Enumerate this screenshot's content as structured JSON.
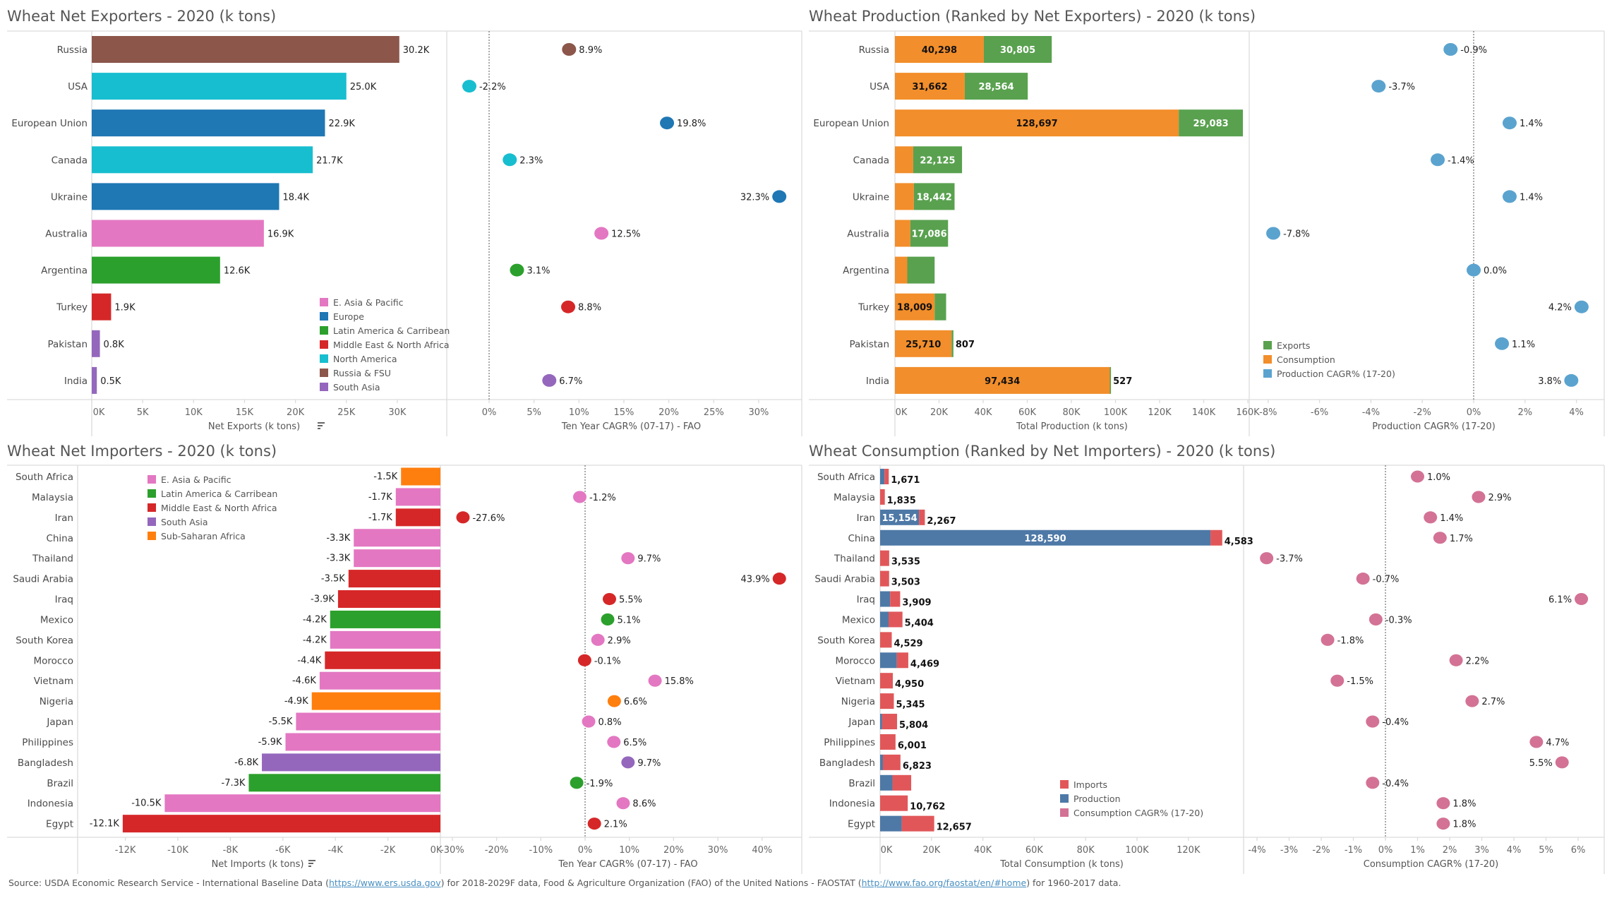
{
  "colors": {
    "E. Asia & Pacific": "#e377c2",
    "Europe": "#1f77b4",
    "Latin America & Carribean": "#2ca02c",
    "Middle East & North Africa": "#d62728",
    "North America": "#17becf",
    "Russia & FSU": "#8c564b",
    "South Asia": "#9467bd",
    "Sub-Saharan Africa": "#ff7f0e",
    "exports": "#59a14f",
    "consumption": "#f28e2b",
    "production_cagr": "#5ba3cf",
    "imports": "#e15759",
    "production": "#4e79a7",
    "consumption_cagr": "#d37295"
  },
  "footer": {
    "prefix": "Source: USDA Economic Research Service - International Baseline Data (",
    "link1": "https://www.ers.usda.gov",
    "middle": ") for 2018-2029F data, Food & Agriculture Organization (FAO) of the United Nations - FAOSTAT (",
    "link2": "http://www.fao.org/faostat/en/#home",
    "suffix": ") for 1960-2017 data."
  },
  "chart_data": [
    {
      "id": "exporters",
      "type": "bar",
      "title": "Wheat Net Exporters - 2020 (k tons)",
      "xlabel": "Net Exports (k tons)",
      "xlim": [
        0,
        34
      ],
      "ticks": [
        "0K",
        "5K",
        "10K",
        "15K",
        "20K",
        "25K",
        "30K"
      ],
      "tick_values": [
        0,
        5,
        10,
        15,
        20,
        25,
        30
      ],
      "categories": [
        "Russia",
        "USA",
        "European Union",
        "Canada",
        "Ukraine",
        "Australia",
        "Argentina",
        "Turkey",
        "Pakistan",
        "India"
      ],
      "values": [
        30.2,
        25.0,
        22.9,
        21.7,
        18.4,
        16.9,
        12.6,
        1.9,
        0.8,
        0.5
      ],
      "labels": [
        "30.2K",
        "25.0K",
        "22.9K",
        "21.7K",
        "18.4K",
        "16.9K",
        "12.6K",
        "1.9K",
        "0.8K",
        "0.5K"
      ],
      "regions": [
        "Russia & FSU",
        "North America",
        "Europe",
        "North America",
        "Europe",
        "E. Asia & Pacific",
        "Latin America & Carribean",
        "Middle East & North Africa",
        "South Asia",
        "South Asia"
      ],
      "legend": [
        "E. Asia & Pacific",
        "Europe",
        "Latin America & Carribean",
        "Middle East & North Africa",
        "North America",
        "Russia & FSU",
        "South Asia"
      ],
      "legend_position": "bottom-right"
    },
    {
      "id": "exporters_cagr",
      "type": "scatter",
      "xlabel": "Ten Year CAGR% (07-17) - FAO",
      "xlim": [
        -3.5,
        34
      ],
      "ticks": [
        "0%",
        "5%",
        "10%",
        "15%",
        "20%",
        "25%",
        "30%"
      ],
      "tick_values": [
        0,
        5,
        10,
        15,
        20,
        25,
        30
      ],
      "values": [
        8.9,
        -2.2,
        19.8,
        2.3,
        32.3,
        12.5,
        3.1,
        8.8,
        null,
        6.7
      ],
      "labels": [
        "8.9%",
        "-2.2%",
        "19.8%",
        "2.3%",
        "32.3%",
        "12.5%",
        "3.1%",
        "8.8%",
        "",
        "6.7%"
      ]
    },
    {
      "id": "production",
      "type": "bar",
      "stacked": true,
      "title": "Wheat Production (Ranked by Net Exporters) - 2020 (k tons)",
      "xlabel": "Total Production (k tons)",
      "xlim": [
        0,
        160
      ],
      "ticks": [
        "0K",
        "20K",
        "40K",
        "60K",
        "80K",
        "100K",
        "120K",
        "140K",
        "160K"
      ],
      "tick_values": [
        0,
        20,
        40,
        60,
        80,
        100,
        120,
        140,
        160
      ],
      "categories": [
        "Russia",
        "USA",
        "European Union",
        "Canada",
        "Ukraine",
        "Australia",
        "Argentina",
        "Turkey",
        "Pakistan",
        "India"
      ],
      "series": [
        {
          "name": "Consumption",
          "values": [
            40298,
            31662,
            128697,
            8300,
            8600,
            7000,
            5600,
            18009,
            25710,
            97434
          ],
          "labels": [
            "40,298",
            "31,662",
            "128,697",
            "",
            "",
            "",
            "",
            "18,009",
            "25,710",
            "97,434"
          ]
        },
        {
          "name": "Exports",
          "values": [
            30805,
            28564,
            29083,
            22125,
            18442,
            17086,
            12400,
            5200,
            807,
            527
          ],
          "labels": [
            "30,805",
            "28,564",
            "29,083",
            "22,125",
            "18,442",
            "17,086",
            "",
            "",
            "807",
            "527"
          ]
        }
      ],
      "legend": [
        "Exports",
        "Consumption",
        "Production CAGR% (17-20)"
      ]
    },
    {
      "id": "production_cagr",
      "type": "scatter",
      "xlabel": "Production CAGR% (17-20)",
      "xlim": [
        -8.6,
        5
      ],
      "ticks": [
        "-8%",
        "-6%",
        "-4%",
        "-2%",
        "0%",
        "2%",
        "4%"
      ],
      "tick_values": [
        -8,
        -6,
        -4,
        -2,
        0,
        2,
        4
      ],
      "values": [
        -0.9,
        -3.7,
        1.4,
        -1.4,
        1.4,
        -7.8,
        0.0,
        4.2,
        1.1,
        3.8
      ],
      "labels": [
        "-0.9%",
        "-3.7%",
        "1.4%",
        "-1.4%",
        "1.4%",
        "-7.8%",
        "0.0%",
        "4.2%",
        "1.1%",
        "3.8%"
      ]
    },
    {
      "id": "importers",
      "type": "bar",
      "title": "Wheat Net Importers - 2020 (k tons)",
      "xlabel": "Net Imports (k tons)",
      "xlim": [
        -13.7,
        0
      ],
      "ticks": [
        "-12K",
        "-10K",
        "-8K",
        "-6K",
        "-4K",
        "-2K",
        "0K"
      ],
      "tick_values": [
        -12,
        -10,
        -8,
        -6,
        -4,
        -2,
        0
      ],
      "categories": [
        "South Africa",
        "Malaysia",
        "Iran",
        "China",
        "Thailand",
        "Saudi Arabia",
        "Iraq",
        "Mexico",
        "South Korea",
        "Morocco",
        "Vietnam",
        "Nigeria",
        "Japan",
        "Philippines",
        "Bangladesh",
        "Brazil",
        "Indonesia",
        "Egypt"
      ],
      "values": [
        -1.5,
        -1.7,
        -1.7,
        -3.3,
        -3.3,
        -3.5,
        -3.9,
        -4.2,
        -4.2,
        -4.4,
        -4.6,
        -4.9,
        -5.5,
        -5.9,
        -6.8,
        -7.3,
        -10.5,
        -12.1
      ],
      "labels": [
        "-1.5K",
        "-1.7K",
        "-1.7K",
        "-3.3K",
        "-3.3K",
        "-3.5K",
        "-3.9K",
        "-4.2K",
        "-4.2K",
        "-4.4K",
        "-4.6K",
        "-4.9K",
        "-5.5K",
        "-5.9K",
        "-6.8K",
        "-7.3K",
        "-10.5K",
        "-12.1K"
      ],
      "regions": [
        "Sub-Saharan Africa",
        "E. Asia & Pacific",
        "Middle East & North Africa",
        "E. Asia & Pacific",
        "E. Asia & Pacific",
        "Middle East & North Africa",
        "Middle East & North Africa",
        "Latin America & Carribean",
        "E. Asia & Pacific",
        "Middle East & North Africa",
        "E. Asia & Pacific",
        "Sub-Saharan Africa",
        "E. Asia & Pacific",
        "E. Asia & Pacific",
        "South Asia",
        "Latin America & Carribean",
        "E. Asia & Pacific",
        "Middle East & North Africa"
      ],
      "legend": [
        "E. Asia & Pacific",
        "Latin America & Carribean",
        "Middle East & North Africa",
        "South Asia",
        "Sub-Saharan Africa"
      ],
      "legend_position": "top-left"
    },
    {
      "id": "importers_cagr",
      "type": "scatter",
      "xlabel": "Ten Year CAGR% (07-17) - FAO",
      "xlim": [
        -33,
        49
      ],
      "ticks": [
        "-30%",
        "-20%",
        "-10%",
        "0%",
        "10%",
        "20%",
        "30%",
        "40%"
      ],
      "tick_values": [
        -30,
        -20,
        -10,
        0,
        10,
        20,
        30,
        40
      ],
      "values": [
        null,
        -1.2,
        -27.6,
        null,
        9.7,
        43.9,
        5.5,
        5.1,
        2.9,
        -0.1,
        15.8,
        6.6,
        0.8,
        6.5,
        9.7,
        -1.9,
        8.6,
        2.1
      ],
      "labels": [
        "",
        "-1.2%",
        "-27.6%",
        "",
        "9.7%",
        "43.9%",
        "5.5%",
        "5.1%",
        "2.9%",
        "-0.1%",
        "15.8%",
        "6.6%",
        "0.8%",
        "6.5%",
        "9.7%",
        "-1.9%",
        "8.6%",
        "2.1%"
      ]
    },
    {
      "id": "consumption",
      "type": "bar",
      "stacked": true,
      "title": "Wheat Consumption (Ranked by Net Importers) - 2020 (k tons)",
      "xlabel": "Total Consumption (k tons)",
      "xlim": [
        0,
        138
      ],
      "ticks": [
        "0K",
        "20K",
        "40K",
        "60K",
        "80K",
        "100K",
        "120K"
      ],
      "tick_values": [
        0,
        20,
        40,
        60,
        80,
        100,
        120
      ],
      "categories": [
        "South Africa",
        "Malaysia",
        "Iran",
        "China",
        "Thailand",
        "Saudi Arabia",
        "Iraq",
        "Mexico",
        "South Korea",
        "Morocco",
        "Vietnam",
        "Nigeria",
        "Japan",
        "Philippines",
        "Bangladesh",
        "Brazil",
        "Indonesia",
        "Egypt"
      ],
      "series": [
        {
          "name": "Production",
          "values": [
            1700,
            0,
            15154,
            128590,
            0,
            0,
            3900,
            3300,
            0,
            6500,
            0,
            0,
            800,
            0,
            1100,
            4800,
            0,
            8400
          ],
          "labels": [
            "",
            "",
            "15,154",
            "128,590",
            "",
            "",
            "",
            "",
            "",
            "",
            "",
            "",
            "",
            "",
            "",
            "",
            "",
            ""
          ]
        },
        {
          "name": "Imports",
          "values": [
            1671,
            1835,
            2267,
            4583,
            3535,
            3503,
            3909,
            5404,
            4529,
            4469,
            4950,
            5345,
            5804,
            6001,
            6823,
            7300,
            10762,
            12657
          ],
          "labels": [
            "1,671",
            "1,835",
            "2,267",
            "4,583",
            "3,535",
            "3,503",
            "3,909",
            "5,404",
            "4,529",
            "4,469",
            "4,950",
            "5,345",
            "5,804",
            "6,001",
            "6,823",
            "",
            "10,762",
            "12,657"
          ]
        }
      ],
      "legend": [
        "Imports",
        "Production",
        "Consumption CAGR% (17-20)"
      ]
    },
    {
      "id": "consumption_cagr",
      "type": "scatter",
      "xlabel": "Consumption CAGR% (17-20)",
      "xlim": [
        -4.4,
        6.8
      ],
      "ticks": [
        "-4%",
        "-3%",
        "-2%",
        "-1%",
        "0%",
        "1%",
        "2%",
        "3%",
        "4%",
        "5%",
        "6%"
      ],
      "tick_values": [
        -4,
        -3,
        -2,
        -1,
        0,
        1,
        2,
        3,
        4,
        5,
        6
      ],
      "values": [
        1.0,
        2.9,
        1.4,
        1.7,
        -3.7,
        -0.7,
        6.1,
        -0.3,
        -1.8,
        2.2,
        -1.5,
        2.7,
        -0.4,
        4.7,
        5.5,
        -0.4,
        1.8,
        1.8
      ],
      "labels": [
        "1.0%",
        "2.9%",
        "1.4%",
        "1.7%",
        "-3.7%",
        "-0.7%",
        "6.1%",
        "-0.3%",
        "-1.8%",
        "2.2%",
        "-1.5%",
        "2.7%",
        "-0.4%",
        "4.7%",
        "5.5%",
        "-0.4%",
        "1.8%",
        "1.8%"
      ]
    }
  ]
}
